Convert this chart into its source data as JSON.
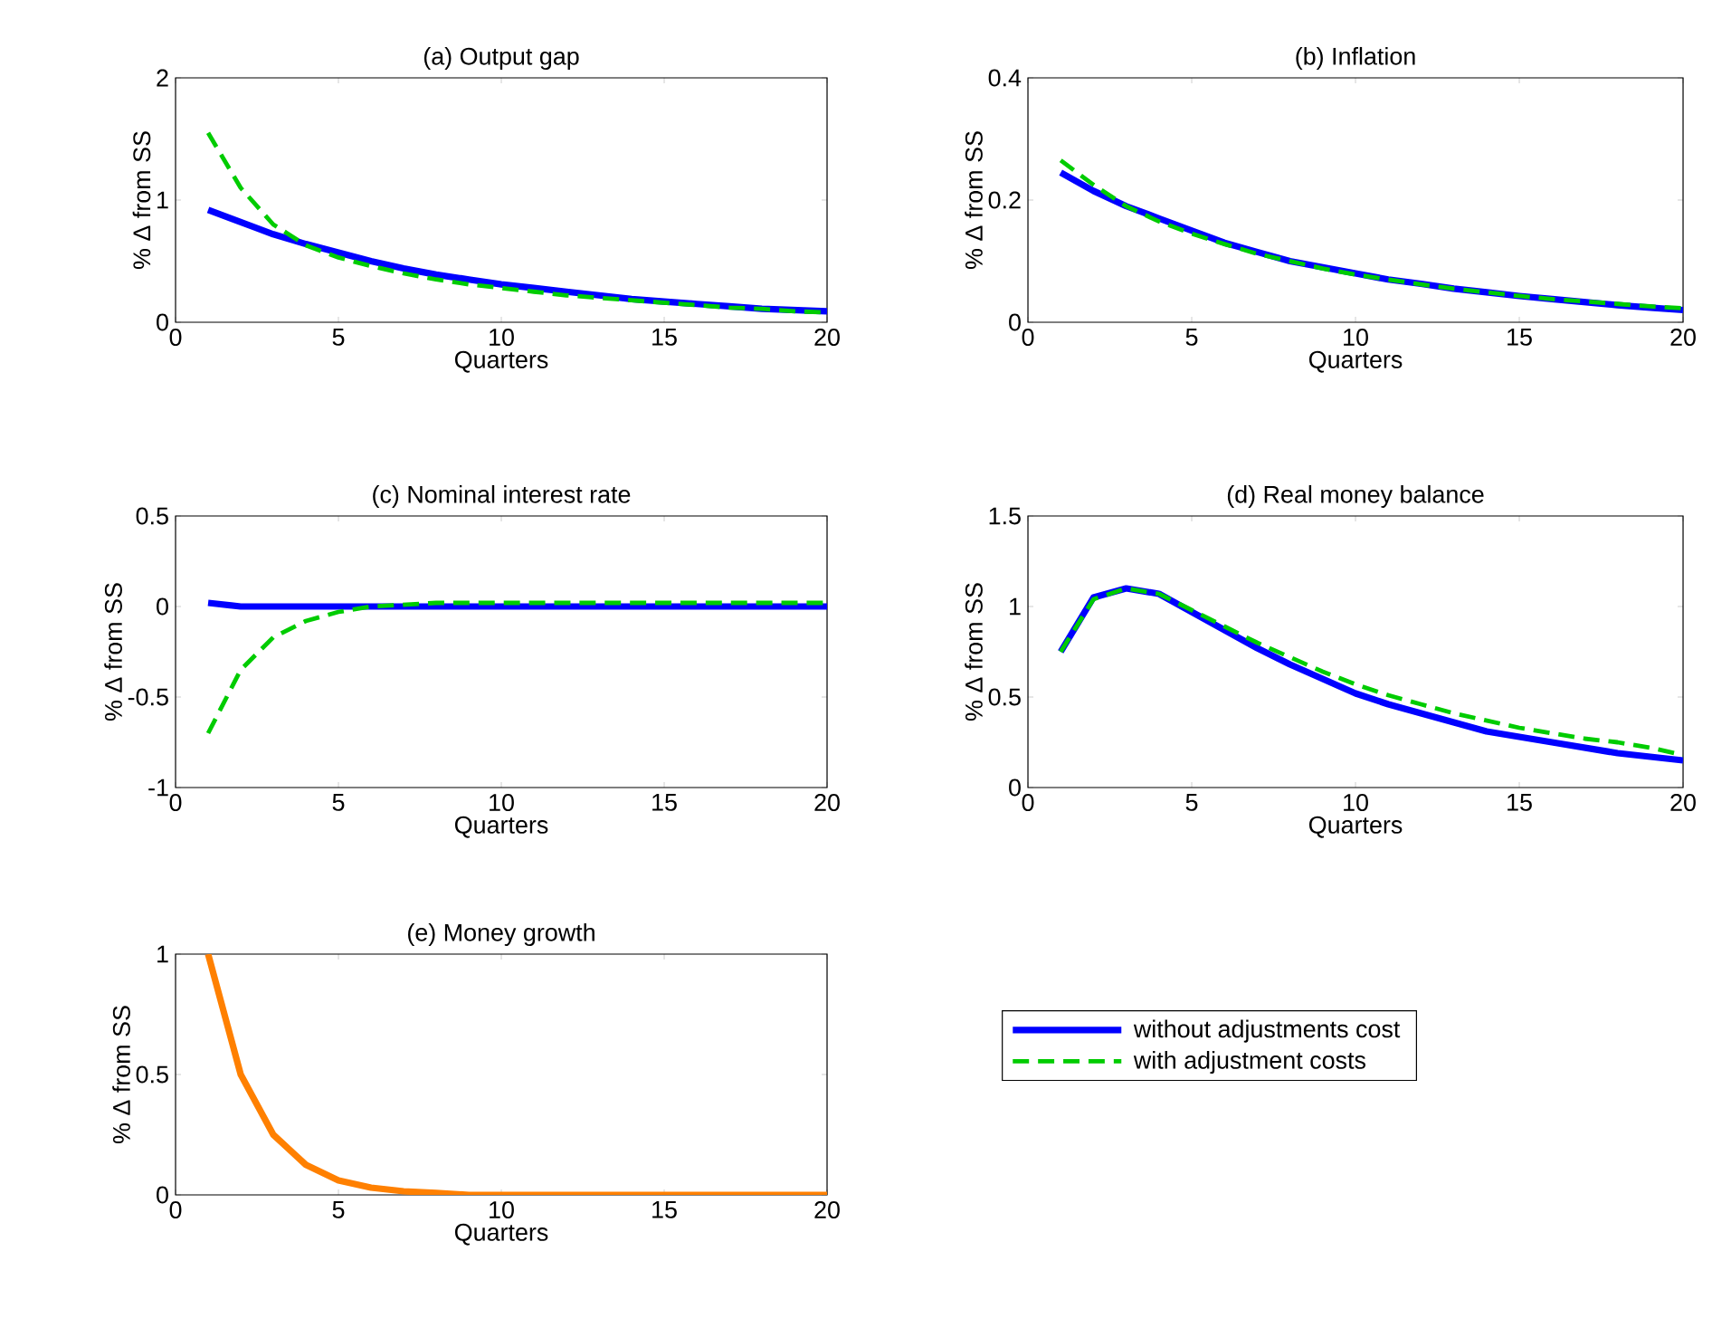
{
  "chart_data": [
    {
      "type": "line",
      "title": "(a) Output gap",
      "xlabel": "Quarters",
      "ylabel": "% Δ from SS",
      "x": [
        1,
        2,
        3,
        4,
        5,
        6,
        7,
        8,
        9,
        10,
        11,
        12,
        13,
        14,
        15,
        16,
        17,
        18,
        19,
        20
      ],
      "xlim": [
        0,
        20
      ],
      "xticks": [
        0,
        5,
        10,
        15,
        20
      ],
      "ylim": [
        0,
        2
      ],
      "yticks": [
        0,
        1,
        2
      ],
      "series": [
        {
          "color": "#0000ff",
          "line_style": "solid",
          "values": [
            0.92,
            0.82,
            0.72,
            0.64,
            0.57,
            0.5,
            0.44,
            0.39,
            0.35,
            0.31,
            0.28,
            0.25,
            0.22,
            0.19,
            0.17,
            0.15,
            0.13,
            0.11,
            0.1,
            0.09
          ]
        },
        {
          "color": "#00cc00",
          "line_style": "dashed",
          "values": [
            1.55,
            1.1,
            0.8,
            0.63,
            0.53,
            0.46,
            0.4,
            0.35,
            0.31,
            0.28,
            0.25,
            0.22,
            0.2,
            0.18,
            0.16,
            0.14,
            0.12,
            0.11,
            0.09,
            0.08
          ]
        }
      ]
    },
    {
      "type": "line",
      "title": "(b) Inflation",
      "xlabel": "Quarters",
      "ylabel": "% Δ from SS",
      "x": [
        1,
        2,
        3,
        4,
        5,
        6,
        7,
        8,
        9,
        10,
        11,
        12,
        13,
        14,
        15,
        16,
        17,
        18,
        19,
        20
      ],
      "xlim": [
        0,
        20
      ],
      "xticks": [
        0,
        5,
        10,
        15,
        20
      ],
      "ylim": [
        0,
        0.4
      ],
      "yticks": [
        0,
        0.2,
        0.4
      ],
      "series": [
        {
          "color": "#0000ff",
          "line_style": "solid",
          "values": [
            0.245,
            0.215,
            0.19,
            0.17,
            0.15,
            0.13,
            0.115,
            0.1,
            0.09,
            0.08,
            0.07,
            0.063,
            0.055,
            0.049,
            0.043,
            0.038,
            0.033,
            0.028,
            0.024,
            0.02
          ]
        },
        {
          "color": "#00cc00",
          "line_style": "dashed",
          "values": [
            0.265,
            0.225,
            0.19,
            0.165,
            0.145,
            0.128,
            0.112,
            0.1,
            0.088,
            0.078,
            0.07,
            0.062,
            0.055,
            0.049,
            0.043,
            0.038,
            0.034,
            0.03,
            0.026,
            0.023
          ]
        }
      ]
    },
    {
      "type": "line",
      "title": "(c) Nominal interest rate",
      "xlabel": "Quarters",
      "ylabel": "% Δ from SS",
      "x": [
        1,
        2,
        3,
        4,
        5,
        6,
        7,
        8,
        9,
        10,
        11,
        12,
        13,
        14,
        15,
        16,
        17,
        18,
        19,
        20
      ],
      "xlim": [
        0,
        20
      ],
      "xticks": [
        0,
        5,
        10,
        15,
        20
      ],
      "ylim": [
        -1,
        0.5
      ],
      "yticks": [
        -1,
        -0.5,
        0,
        0.5
      ],
      "series": [
        {
          "color": "#0000ff",
          "line_style": "solid",
          "values": [
            0.02,
            0,
            0,
            0,
            0,
            0,
            0,
            0,
            0,
            0,
            0,
            0,
            0,
            0,
            0,
            0,
            0,
            0,
            0,
            0
          ]
        },
        {
          "color": "#00cc00",
          "line_style": "dashed",
          "values": [
            -0.7,
            -0.35,
            -0.17,
            -0.08,
            -0.03,
            0,
            0.01,
            0.02,
            0.02,
            0.02,
            0.02,
            0.02,
            0.02,
            0.02,
            0.02,
            0.02,
            0.02,
            0.02,
            0.02,
            0.02
          ]
        }
      ]
    },
    {
      "type": "line",
      "title": "(d) Real money balance",
      "xlabel": "Quarters",
      "ylabel": "% Δ from SS",
      "x": [
        1,
        2,
        3,
        4,
        5,
        6,
        7,
        8,
        9,
        10,
        11,
        12,
        13,
        14,
        15,
        16,
        17,
        18,
        19,
        20
      ],
      "xlim": [
        0,
        20
      ],
      "xticks": [
        0,
        5,
        10,
        15,
        20
      ],
      "ylim": [
        0,
        1.5
      ],
      "yticks": [
        0,
        0.5,
        1,
        1.5
      ],
      "legend": "bottom",
      "series": [
        {
          "name": "without adjustments cost",
          "color": "#0000ff",
          "line_style": "solid",
          "values": [
            0.75,
            1.05,
            1.1,
            1.07,
            0.97,
            0.87,
            0.77,
            0.68,
            0.6,
            0.52,
            0.46,
            0.41,
            0.36,
            0.31,
            0.28,
            0.25,
            0.22,
            0.19,
            0.17,
            0.15
          ]
        },
        {
          "name": "with adjustment costs",
          "color": "#00cc00",
          "line_style": "dashed",
          "values": [
            0.75,
            1.04,
            1.1,
            1.07,
            0.98,
            0.89,
            0.8,
            0.72,
            0.64,
            0.57,
            0.51,
            0.46,
            0.41,
            0.37,
            0.33,
            0.3,
            0.27,
            0.25,
            0.22,
            0.18
          ]
        }
      ]
    },
    {
      "type": "line",
      "title": "(e) Money growth",
      "xlabel": "Quarters",
      "ylabel": "% Δ from SS",
      "x": [
        1,
        2,
        3,
        4,
        5,
        6,
        7,
        8,
        9,
        10,
        11,
        12,
        13,
        14,
        15,
        16,
        17,
        18,
        19,
        20
      ],
      "xlim": [
        0,
        20
      ],
      "xticks": [
        0,
        5,
        10,
        15,
        20
      ],
      "ylim": [
        0,
        1
      ],
      "yticks": [
        0,
        0.5,
        1
      ],
      "series": [
        {
          "color": "#ff8000",
          "line_style": "solid",
          "values": [
            1,
            0.5,
            0.25,
            0.125,
            0.06,
            0.03,
            0.015,
            0.008,
            0,
            0,
            0,
            0,
            0,
            0,
            0,
            0,
            0,
            0,
            0,
            0
          ]
        }
      ]
    }
  ]
}
